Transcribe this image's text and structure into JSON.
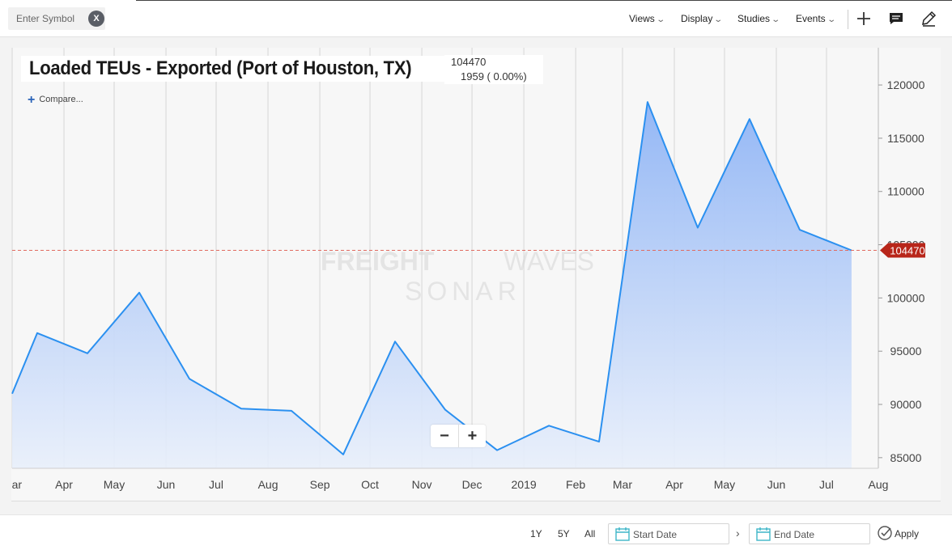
{
  "toolbar": {
    "symbol_placeholder": "Enter Symbol",
    "clear_label": "X",
    "menus": [
      "Views",
      "Display",
      "Studies",
      "Events"
    ],
    "icons": [
      "plus-icon",
      "comment-icon",
      "pencil-icon"
    ]
  },
  "chart_header": {
    "title": "Loaded TEUs - Exported (Port of Houston, TX)",
    "last_value": "104470",
    "change": "1959 ( 0.00%)",
    "compare_label": "Compare..."
  },
  "watermark": {
    "line1_bold": "FREIGHT",
    "line1_light": "WAVES",
    "line2": "SONAR"
  },
  "zoom": {
    "out_label": "−",
    "in_label": "+"
  },
  "footer": {
    "ranges": [
      "1Y",
      "5Y",
      "All"
    ],
    "start_placeholder": "Start Date",
    "end_placeholder": "End Date",
    "apply_label": "Apply"
  },
  "colors": {
    "line": "#2b90f0",
    "area_top": "#8fb4f5",
    "area_bottom": "#e8effb",
    "marker": "#b8261a",
    "ref_line": "#e06a60",
    "grid": "#d6d6d6"
  },
  "chart_data": {
    "type": "area",
    "title": "Loaded TEUs - Exported (Port of Houston, TX)",
    "xlabel": "",
    "ylabel": "",
    "ylim": [
      84000,
      123500
    ],
    "yticks": [
      85000,
      90000,
      95000,
      100000,
      105000,
      110000,
      115000,
      120000
    ],
    "ytick_labels": [
      "85000",
      "90000",
      "95000",
      "100000",
      "105000",
      "110000",
      "115000",
      "120000"
    ],
    "xtick_labels": [
      "Mar",
      "Apr",
      "May",
      "Jun",
      "Jul",
      "Aug",
      "Sep",
      "Oct",
      "Nov",
      "Dec",
      "2019",
      "Feb",
      "Mar",
      "Apr",
      "May",
      "Jun",
      "Jul",
      "Aug"
    ],
    "xtick_dates": [
      "2018-03-01",
      "2018-04-01",
      "2018-05-01",
      "2018-06-01",
      "2018-07-01",
      "2018-08-01",
      "2018-09-01",
      "2018-10-01",
      "2018-11-01",
      "2018-12-01",
      "2019-01-01",
      "2019-02-01",
      "2019-03-01",
      "2019-04-01",
      "2019-05-01",
      "2019-06-01",
      "2019-07-01",
      "2019-08-01"
    ],
    "xlim": [
      "2018-03-01",
      "2019-08-01"
    ],
    "series": [
      {
        "x": [
          "2018-03-01",
          "2018-03-16",
          "2018-04-15",
          "2018-05-16",
          "2018-06-15",
          "2018-07-16",
          "2018-08-15",
          "2018-09-15",
          "2018-10-16",
          "2018-11-15",
          "2018-12-16",
          "2019-01-16",
          "2019-02-15",
          "2019-03-16",
          "2019-04-15",
          "2019-05-16",
          "2019-06-15",
          "2019-07-16"
        ],
        "values": [
          91000,
          96700,
          94800,
          100500,
          92400,
          89600,
          89400,
          85300,
          95900,
          89500,
          85700,
          88000,
          86500,
          118400,
          106600,
          116800,
          106400,
          104470
        ]
      }
    ],
    "last_value_marker": 104470,
    "grid": true,
    "legend": "none"
  }
}
